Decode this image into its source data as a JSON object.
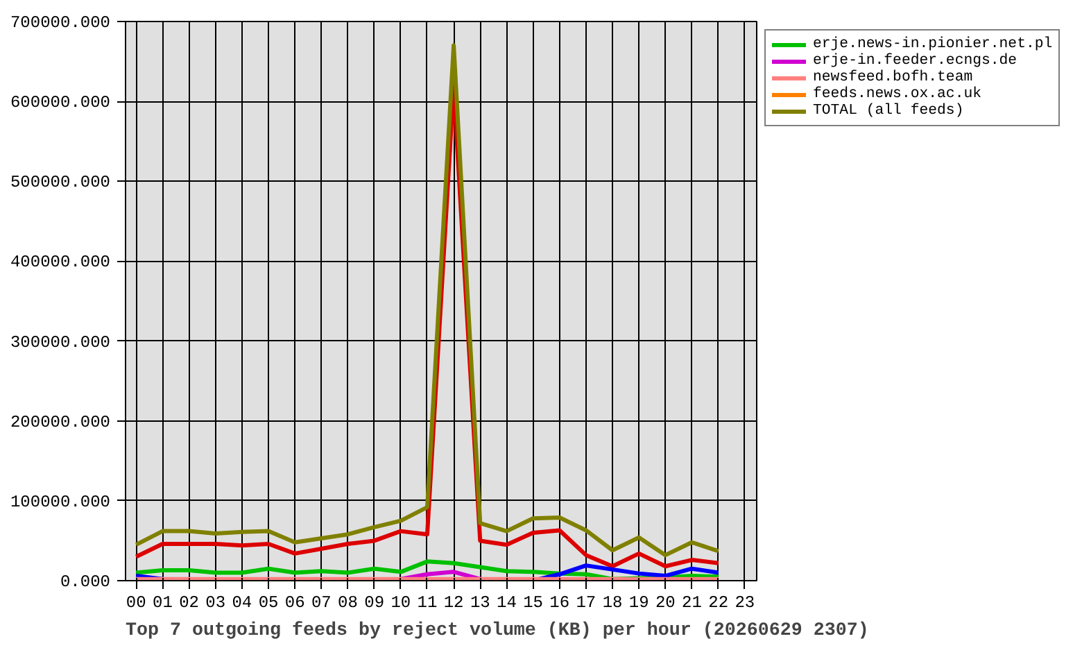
{
  "chart_data": {
    "type": "line",
    "title": "Top 7 outgoing feeds by reject volume (KB) per hour (20260629 2307)",
    "x": [
      0,
      1,
      2,
      3,
      4,
      5,
      6,
      7,
      8,
      9,
      10,
      11,
      12,
      13,
      14,
      15,
      16,
      17,
      18,
      19,
      20,
      21,
      22
    ],
    "xlim": [
      -0.4,
      23.45
    ],
    "xticks": [
      {
        "value": 0,
        "label": "00"
      },
      {
        "value": 1,
        "label": "01"
      },
      {
        "value": 2,
        "label": "02"
      },
      {
        "value": 3,
        "label": "03"
      },
      {
        "value": 4,
        "label": "04"
      },
      {
        "value": 5,
        "label": "05"
      },
      {
        "value": 6,
        "label": "06"
      },
      {
        "value": 7,
        "label": "07"
      },
      {
        "value": 8,
        "label": "08"
      },
      {
        "value": 9,
        "label": "09"
      },
      {
        "value": 10,
        "label": "10"
      },
      {
        "value": 11,
        "label": "11"
      },
      {
        "value": 12,
        "label": "12"
      },
      {
        "value": 13,
        "label": "13"
      },
      {
        "value": 14,
        "label": "14"
      },
      {
        "value": 15,
        "label": "15"
      },
      {
        "value": 16,
        "label": "16"
      },
      {
        "value": 17,
        "label": "17"
      },
      {
        "value": 18,
        "label": "18"
      },
      {
        "value": 19,
        "label": "19"
      },
      {
        "value": 20,
        "label": "20"
      },
      {
        "value": 21,
        "label": "21"
      },
      {
        "value": 22,
        "label": "22"
      },
      {
        "value": 23,
        "label": "23"
      }
    ],
    "ylim": [
      0,
      700000
    ],
    "yticks": [
      {
        "value": 0,
        "label": "0.000"
      },
      {
        "value": 100000,
        "label": "100000.000"
      },
      {
        "value": 200000,
        "label": "200000.000"
      },
      {
        "value": 300000,
        "label": "300000.000"
      },
      {
        "value": 400000,
        "label": "400000.000"
      },
      {
        "value": 500000,
        "label": "500000.000"
      },
      {
        "value": 600000,
        "label": "600000.000"
      },
      {
        "value": 700000,
        "label": "700000.000"
      }
    ],
    "grid": true,
    "legend": "top right",
    "series": [
      {
        "color": "#dd0000",
        "values": [
          30000,
          46000,
          46000,
          46000,
          44000,
          46000,
          34000,
          40000,
          46000,
          50000,
          62000,
          58000,
          620000,
          50000,
          45000,
          60000,
          63000,
          32000,
          18000,
          34000,
          18000,
          26000,
          22000
        ]
      },
      {
        "name": "erje.news-in.pionier.net.pl",
        "color": "#00c000",
        "values": [
          10000,
          13000,
          13000,
          10000,
          10000,
          15000,
          10000,
          12000,
          10000,
          15000,
          11000,
          24000,
          22000,
          17000,
          12000,
          11000,
          9000,
          8000,
          2000,
          3000,
          4000,
          6000,
          5000
        ]
      },
      {
        "color": "#0000ff",
        "values": [
          6000,
          2000,
          null,
          null,
          null,
          null,
          null,
          null,
          null,
          null,
          null,
          null,
          null,
          null,
          null,
          0,
          8000,
          19000,
          14000,
          9000,
          6000,
          15000,
          10000
        ]
      },
      {
        "name": "erje-in.feeder.ecngs.de",
        "color": "#d000d0",
        "values": [
          null,
          null,
          null,
          null,
          null,
          null,
          null,
          null,
          null,
          null,
          2000,
          8000,
          11000,
          2000,
          null,
          null,
          null,
          null,
          null,
          null,
          null,
          null,
          null
        ]
      },
      {
        "name": "newsfeed.bofh.team",
        "color": "#ff8080",
        "values": [
          2000,
          2000,
          2000,
          2000,
          2000,
          2000,
          2000,
          2000,
          2000,
          2000,
          2000,
          2000,
          2000,
          2000,
          2000,
          2000,
          2000,
          2000,
          2000,
          2000,
          2000,
          2000,
          2000
        ]
      },
      {
        "name": "feeds.news.ox.ac.uk",
        "color": "#ff8000",
        "values": [
          null,
          null,
          null,
          null,
          null,
          null,
          null,
          null,
          null,
          null,
          null,
          null,
          null,
          null,
          null,
          null,
          null,
          null,
          null,
          null,
          null,
          null,
          null
        ]
      },
      {
        "color": "#c08080",
        "values": [
          null,
          null,
          null,
          null,
          null,
          null,
          null,
          null,
          null,
          null,
          null,
          null,
          null,
          null,
          null,
          null,
          null,
          null,
          null,
          null,
          null,
          null,
          null
        ]
      },
      {
        "name": "TOTAL (all feeds)",
        "color": "#808000",
        "values": [
          45000,
          62000,
          62000,
          59000,
          61000,
          62000,
          48000,
          53000,
          58000,
          67000,
          75000,
          92000,
          670000,
          72000,
          62000,
          78000,
          79000,
          63000,
          38000,
          54000,
          32000,
          48000,
          37000
        ]
      }
    ]
  }
}
